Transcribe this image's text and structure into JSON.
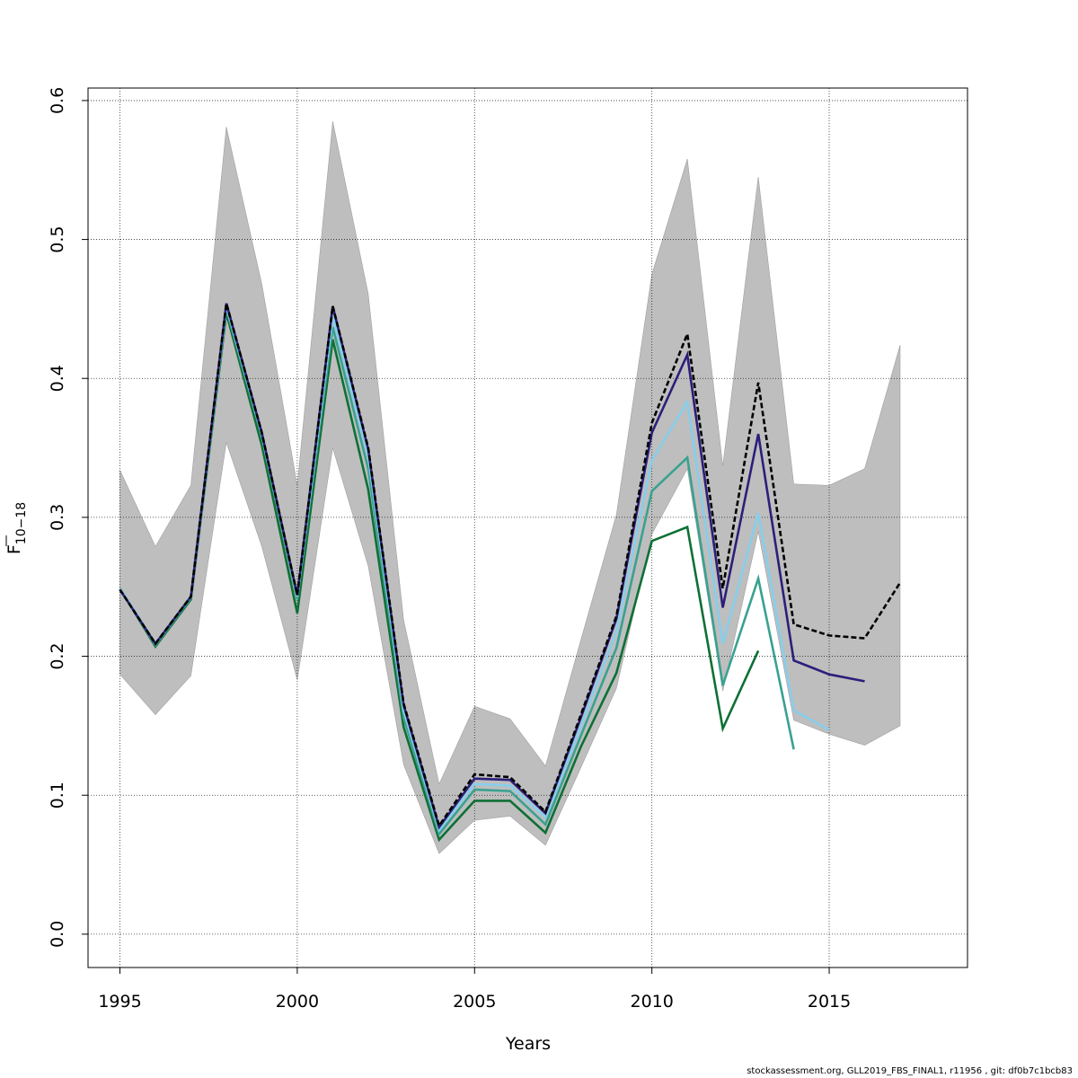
{
  "chart_data": {
    "type": "line",
    "title": "",
    "xlabel": "Years",
    "ylabel_main": "F",
    "ylabel_sub": "10−18",
    "xlim": [
      1994.1,
      2018.9
    ],
    "ylim": [
      -0.024,
      0.609
    ],
    "x_ticks": [
      1995,
      2000,
      2005,
      2010,
      2015
    ],
    "y_ticks": [
      0.0,
      0.1,
      0.2,
      0.3,
      0.4,
      0.5,
      0.6
    ],
    "y_tick_labels": [
      "0.0",
      "0.1",
      "0.2",
      "0.3",
      "0.4",
      "0.5",
      "0.6"
    ],
    "grid": true,
    "band": {
      "color": "#bebebe",
      "x": [
        1995,
        1996,
        1997,
        1998,
        1999,
        2000,
        2001,
        2002,
        2003,
        2004,
        2005,
        2006,
        2007,
        2008,
        2009,
        2010,
        2011,
        2012,
        2013,
        2014,
        2015,
        2016,
        2017
      ],
      "upper": [
        0.334,
        0.279,
        0.323,
        0.581,
        0.468,
        0.323,
        0.585,
        0.461,
        0.226,
        0.108,
        0.164,
        0.155,
        0.121,
        0.212,
        0.302,
        0.475,
        0.558,
        0.337,
        0.545,
        0.324,
        0.323,
        0.335,
        0.424
      ],
      "lower": [
        0.187,
        0.158,
        0.186,
        0.354,
        0.279,
        0.183,
        0.35,
        0.265,
        0.122,
        0.058,
        0.082,
        0.085,
        0.064,
        0.12,
        0.177,
        0.288,
        0.335,
        0.175,
        0.29,
        0.154,
        0.144,
        0.136,
        0.15
      ]
    },
    "series": [
      {
        "color": "#000000",
        "dashed": true,
        "x": [
          1995,
          1996,
          1997,
          1998,
          1999,
          2000,
          2001,
          2002,
          2003,
          2004,
          2005,
          2006,
          2007,
          2008,
          2009,
          2010,
          2011,
          2012,
          2013,
          2014,
          2015,
          2016,
          2017
        ],
        "values": [
          0.248,
          0.209,
          0.243,
          0.454,
          0.361,
          0.244,
          0.452,
          0.35,
          0.166,
          0.078,
          0.115,
          0.113,
          0.088,
          0.158,
          0.229,
          0.368,
          0.432,
          0.249,
          0.397,
          0.223,
          0.215,
          0.213,
          0.253
        ]
      },
      {
        "color": "#2b1f7a",
        "dashed": false,
        "x": [
          1995,
          1996,
          1997,
          1998,
          1999,
          2000,
          2001,
          2002,
          2003,
          2004,
          2005,
          2006,
          2007,
          2008,
          2009,
          2010,
          2011,
          2012,
          2013,
          2014,
          2015,
          2016
        ],
        "values": [
          0.248,
          0.209,
          0.243,
          0.454,
          0.361,
          0.244,
          0.452,
          0.349,
          0.165,
          0.077,
          0.112,
          0.111,
          0.087,
          0.156,
          0.227,
          0.361,
          0.417,
          0.235,
          0.36,
          0.197,
          0.187,
          0.182
        ]
      },
      {
        "color": "#87ceeb",
        "dashed": false,
        "x": [
          1995,
          1996,
          1997,
          1998,
          1999,
          2000,
          2001,
          2002,
          2003,
          2004,
          2005,
          2006,
          2007,
          2008,
          2009,
          2010,
          2011,
          2012,
          2013,
          2014,
          2015
        ],
        "values": [
          0.249,
          0.209,
          0.243,
          0.452,
          0.36,
          0.243,
          0.445,
          0.344,
          0.161,
          0.075,
          0.108,
          0.107,
          0.084,
          0.15,
          0.218,
          0.341,
          0.383,
          0.209,
          0.303,
          0.161,
          0.147
        ]
      },
      {
        "color": "#3aa190",
        "dashed": false,
        "x": [
          1995,
          1996,
          1997,
          1998,
          1999,
          2000,
          2001,
          2002,
          2003,
          2004,
          2005,
          2006,
          2007,
          2008,
          2009,
          2010,
          2011,
          2012,
          2013,
          2014
        ],
        "values": [
          0.249,
          0.208,
          0.242,
          0.45,
          0.358,
          0.241,
          0.437,
          0.335,
          0.156,
          0.072,
          0.104,
          0.103,
          0.079,
          0.143,
          0.206,
          0.319,
          0.343,
          0.179,
          0.256,
          0.133
        ]
      },
      {
        "color": "#0e7035",
        "dashed": false,
        "x": [
          1995,
          1996,
          1997,
          1998,
          1999,
          2000,
          2001,
          2002,
          2003,
          2004,
          2005,
          2006,
          2007,
          2008,
          2009,
          2010,
          2011,
          2012,
          2013
        ],
        "values": [
          0.249,
          0.207,
          0.241,
          0.447,
          0.352,
          0.231,
          0.428,
          0.32,
          0.149,
          0.068,
          0.096,
          0.096,
          0.073,
          0.135,
          0.188,
          0.283,
          0.293,
          0.148,
          0.204
        ]
      }
    ]
  },
  "footer": "stockassessment.org, GLL2019_FBS_FINAL1, r11956 , git: df0b7c1bcb83"
}
